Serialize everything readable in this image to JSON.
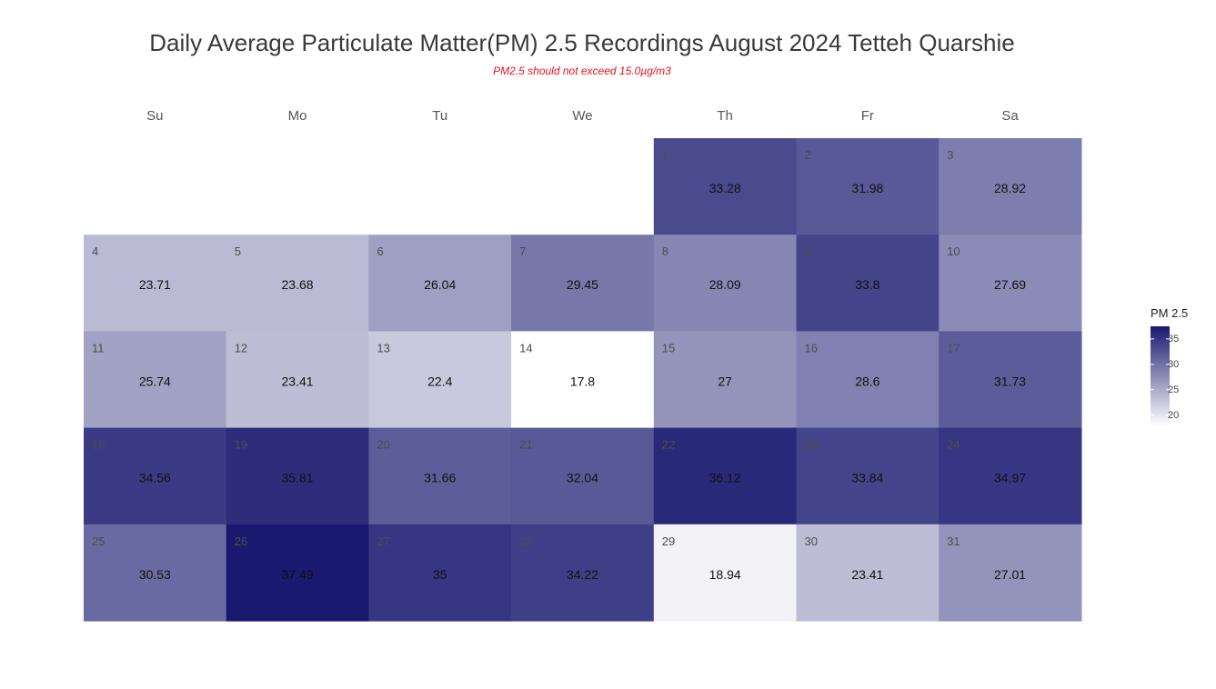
{
  "chart_data": {
    "type": "heatmap",
    "title": "Daily Average Particulate Matter(PM) 2.5 Recordings August 2024 Tetteh Quarshie",
    "subtitle": "PM2.5 should not exceed 15.0µg/m3",
    "weekdays": [
      "Su",
      "Mo",
      "Tu",
      "We",
      "Th",
      "Fr",
      "Sa"
    ],
    "first_weekday_index": 4,
    "days": [
      1,
      2,
      3,
      4,
      5,
      6,
      7,
      8,
      9,
      10,
      11,
      12,
      13,
      14,
      15,
      16,
      17,
      18,
      19,
      20,
      21,
      22,
      23,
      24,
      25,
      26,
      27,
      28,
      29,
      30,
      31
    ],
    "values": [
      "33.28",
      "31.98",
      "28.92",
      "23.71",
      "23.68",
      "26.04",
      "29.45",
      "28.09",
      "33.8",
      "27.69",
      "25.74",
      "23.41",
      "22.4",
      "17.8",
      "27",
      "28.6",
      "31.73",
      "34.56",
      "35.81",
      "31.66",
      "32.04",
      "36.12",
      "33.84",
      "34.97",
      "30.53",
      "37.49",
      "35",
      "34.22",
      "18.94",
      "23.41",
      "27.01"
    ],
    "legend": {
      "title": "PM 2.5",
      "ticks": [
        "20",
        "25",
        "30",
        "35"
      ],
      "range": [
        17.8,
        37.49
      ]
    },
    "color_low": "#ffffff",
    "color_high": "#191970",
    "subtitle_color": "#e8101c"
  }
}
